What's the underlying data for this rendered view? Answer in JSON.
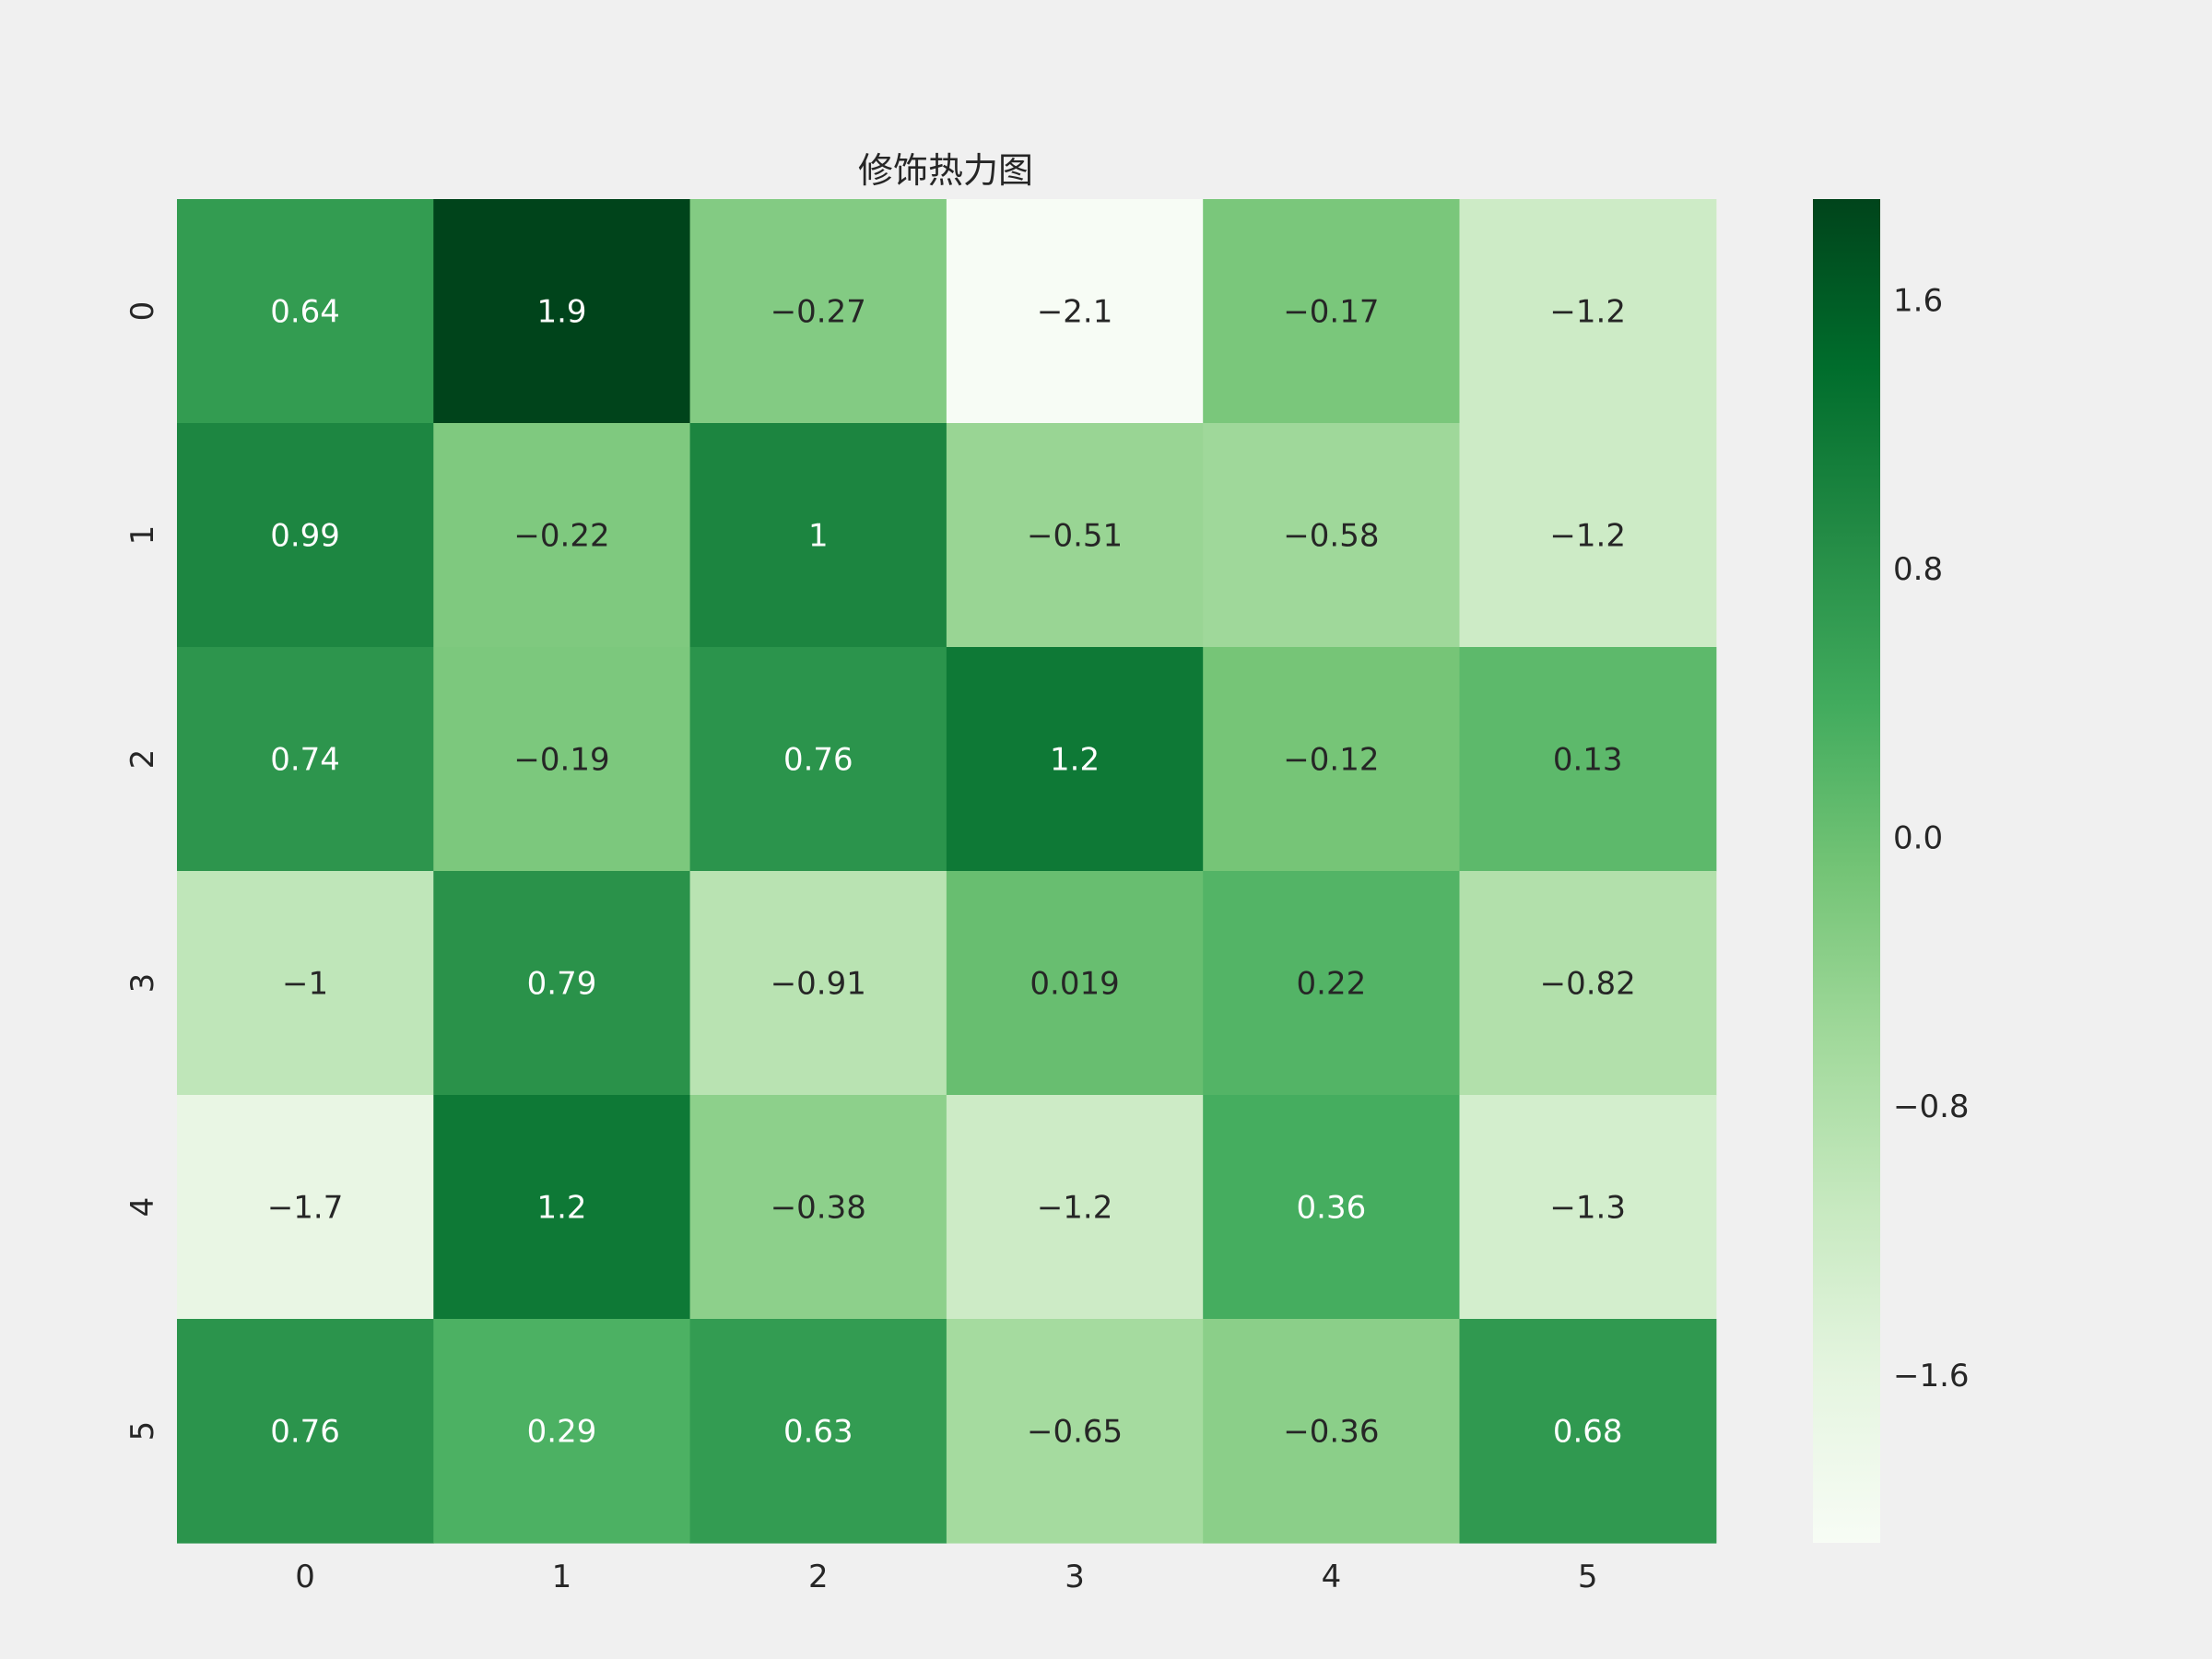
{
  "chart_data": {
    "type": "heatmap",
    "title": "修饰热力图",
    "x_categories": [
      "0",
      "1",
      "2",
      "3",
      "4",
      "5"
    ],
    "y_categories": [
      "0",
      "1",
      "2",
      "3",
      "4",
      "5"
    ],
    "values": [
      [
        0.64,
        1.9,
        -0.27,
        -2.1,
        -0.17,
        -1.2
      ],
      [
        0.99,
        -0.22,
        1,
        -0.51,
        -0.58,
        -1.2
      ],
      [
        0.74,
        -0.19,
        0.76,
        1.2,
        -0.12,
        0.13
      ],
      [
        -1,
        0.79,
        -0.91,
        0.019,
        0.22,
        -0.82
      ],
      [
        -1.7,
        1.2,
        -0.38,
        -1.2,
        0.36,
        -1.3
      ],
      [
        0.76,
        0.29,
        0.63,
        -0.65,
        -0.36,
        0.68
      ]
    ],
    "cell_labels": [
      [
        "0.64",
        "1.9",
        "−0.27",
        "−2.1",
        "−0.17",
        "−1.2"
      ],
      [
        "0.99",
        "−0.22",
        "1",
        "−0.51",
        "−0.58",
        "−1.2"
      ],
      [
        "0.74",
        "−0.19",
        "0.76",
        "1.2",
        "−0.12",
        "0.13"
      ],
      [
        "−1",
        "0.79",
        "−0.91",
        "0.019",
        "0.22",
        "−0.82"
      ],
      [
        "−1.7",
        "1.2",
        "−0.38",
        "−1.2",
        "0.36",
        "−1.3"
      ],
      [
        "0.76",
        "0.29",
        "0.63",
        "−0.65",
        "−0.36",
        "0.68"
      ]
    ],
    "colormap": "Greens",
    "colormap_colors": [
      "#f7fcf5",
      "#e5f5e0",
      "#c7e9c0",
      "#a1d99b",
      "#74c476",
      "#41ab5d",
      "#238b45",
      "#006d2c",
      "#00441b"
    ],
    "vmin": -2.1,
    "vmax": 1.9,
    "colorbar": {
      "ticks": [
        1.6,
        0.8,
        0.0,
        -0.8,
        -1.6
      ],
      "tick_labels": [
        "1.6",
        "0.8",
        "0.0",
        "−0.8",
        "−1.6"
      ]
    },
    "annotation_dark_color": "#262626",
    "annotation_light_color": "#ffffff",
    "background": "#f0f0f0"
  }
}
